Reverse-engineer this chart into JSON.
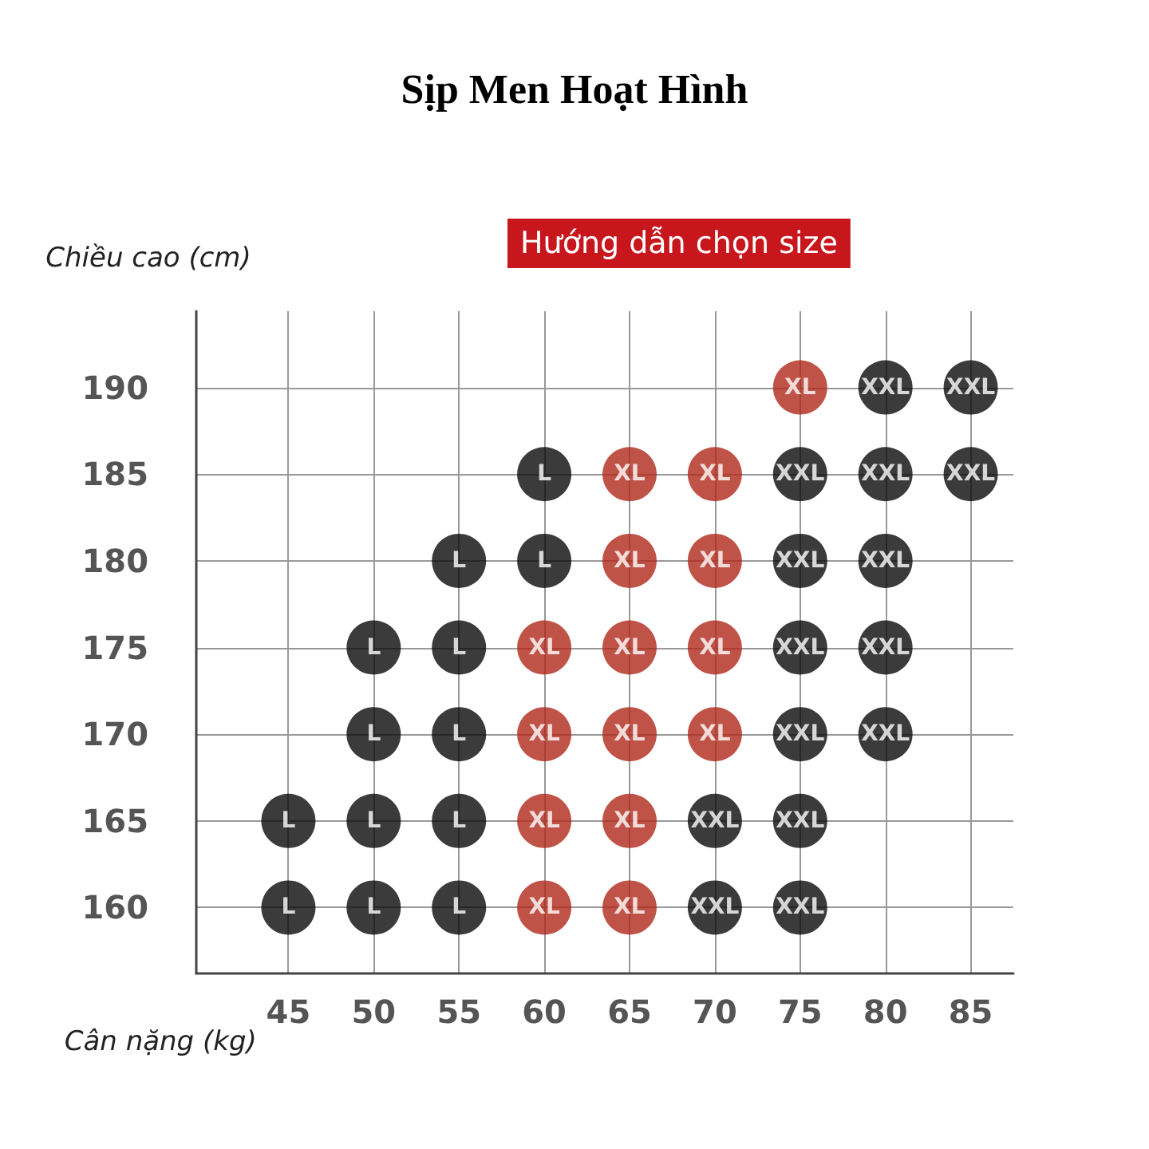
{
  "chart_data": {
    "type": "scatter",
    "title": "Sịp Men Hoạt Hình",
    "subtitle": "Hướng dẫn chọn size",
    "xlabel": "Cân nặng (kg)",
    "ylabel": "Chiều cao (cm)",
    "xlim": [
      39.6,
      87.5
    ],
    "xticks": [
      45,
      50,
      55,
      60,
      65,
      70,
      75,
      80,
      85
    ],
    "ylim": [
      156.2,
      194.4
    ],
    "yticks": [
      160,
      165,
      170,
      175,
      180,
      185,
      190
    ],
    "grid": true,
    "legend": false,
    "marker": "circle",
    "series": [
      {
        "name": "L",
        "color": "#0a0a0a",
        "x": [
          45,
          45,
          50,
          50,
          50,
          50,
          55,
          55,
          55,
          55,
          55,
          60,
          60
        ],
        "values": [
          165,
          160,
          175,
          170,
          165,
          160,
          180,
          175,
          170,
          165,
          160,
          185,
          180
        ]
      },
      {
        "name": "XL",
        "color": "#b0281a",
        "x": [
          60,
          60,
          60,
          60,
          65,
          65,
          65,
          65,
          65,
          65,
          70,
          70,
          70,
          70,
          75
        ],
        "values": [
          175,
          170,
          165,
          160,
          185,
          180,
          175,
          170,
          165,
          160,
          185,
          180,
          175,
          170,
          190
        ]
      },
      {
        "name": "XXL",
        "color": "#0a0a0a",
        "x": [
          70,
          70,
          75,
          75,
          75,
          75,
          75,
          75,
          80,
          80,
          80,
          80,
          80,
          85,
          85
        ],
        "values": [
          165,
          160,
          185,
          180,
          175,
          170,
          165,
          160,
          190,
          185,
          180,
          175,
          170,
          190,
          185
        ]
      }
    ]
  }
}
